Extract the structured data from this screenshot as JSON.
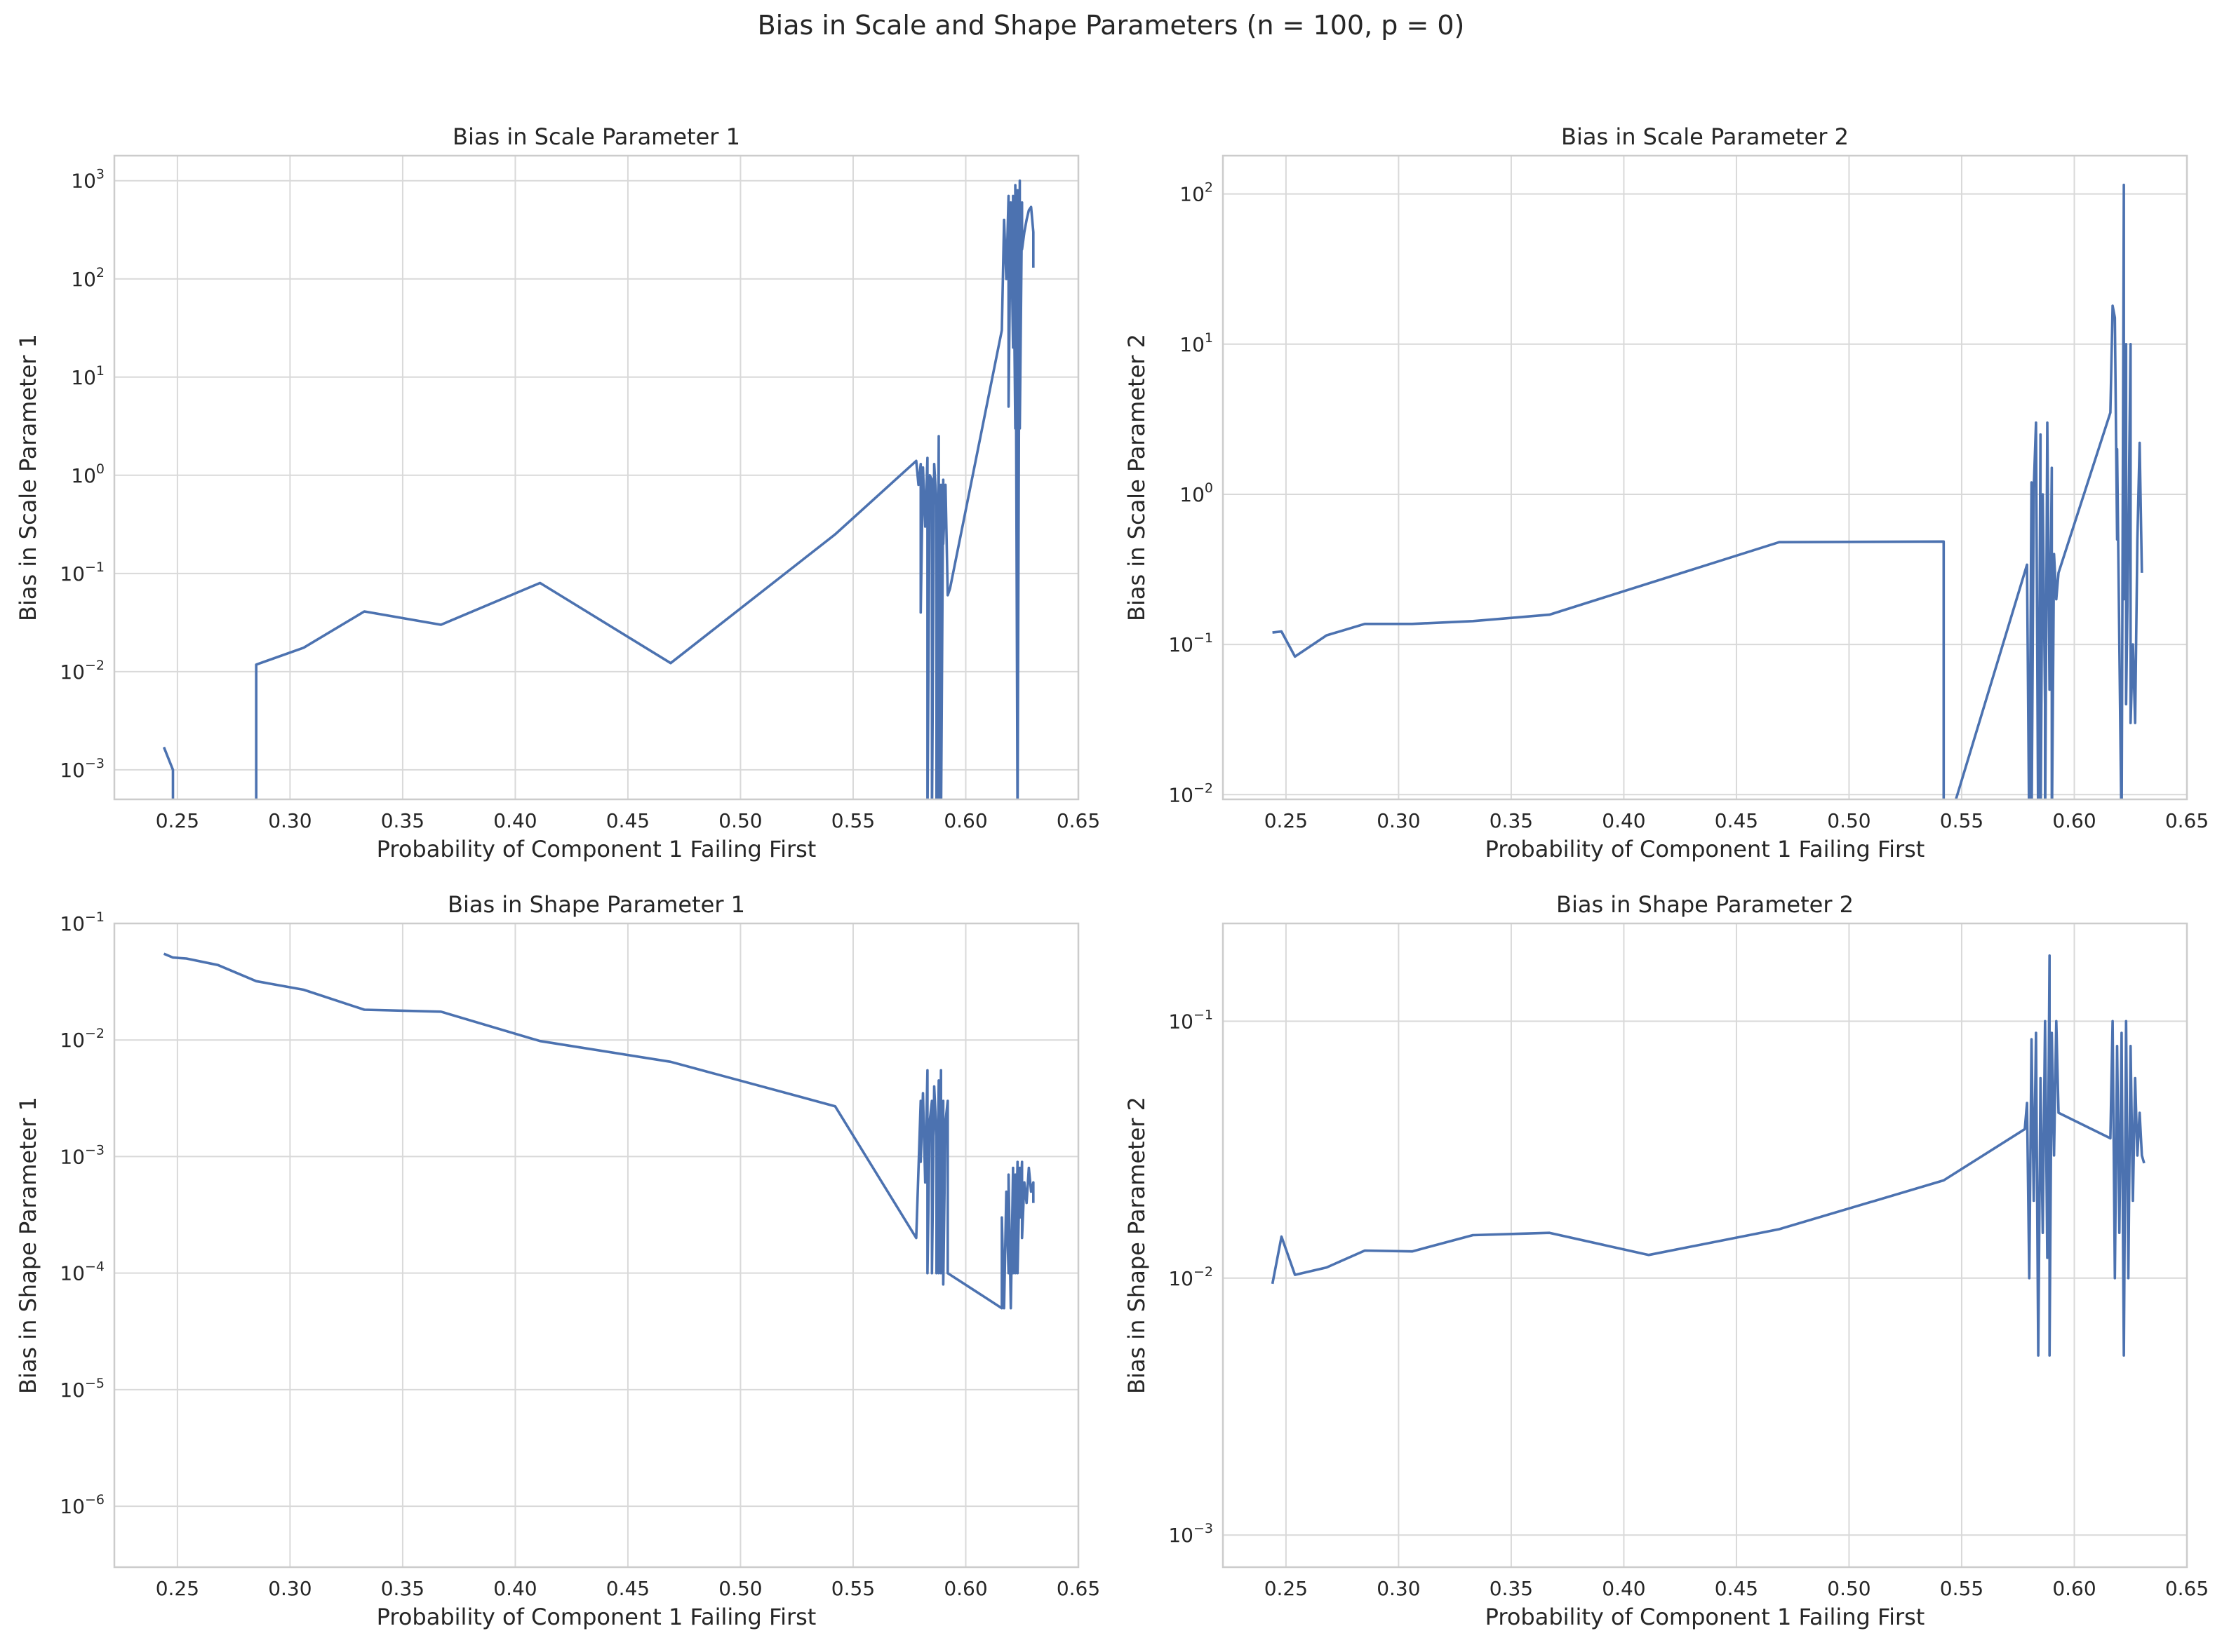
{
  "figure": {
    "suptitle": "Bias in Scale and Shape Parameters (n = 100, p = 0)",
    "background": "#ffffff",
    "grid_color": "#d9d9d9",
    "line_color": "#4c72b0"
  },
  "chart_data": [
    {
      "type": "line",
      "title": "Bias in Scale Parameter 1",
      "xlabel": "Probability of Component 1 Failing First",
      "ylabel": "Bias in Scale Parameter 1",
      "xlim": [
        0.222,
        0.65
      ],
      "xticks": [
        0.25,
        0.3,
        0.35,
        0.4,
        0.45,
        0.5,
        0.55,
        0.6,
        0.65
      ],
      "xtick_labels": [
        "0.25",
        "0.30",
        "0.35",
        "0.40",
        "0.45",
        "0.50",
        "0.55",
        "0.60",
        "0.65"
      ],
      "yscale": "log",
      "ylim": [
        0.0005,
        1800
      ],
      "yticks": [
        0.001,
        0.01,
        0.1,
        1,
        10,
        100,
        1000
      ],
      "ytick_labels": [
        {
          "base": "10",
          "exp": "−3"
        },
        {
          "base": "10",
          "exp": "−2"
        },
        {
          "base": "10",
          "exp": "−1"
        },
        {
          "base": "10",
          "exp": "0"
        },
        {
          "base": "10",
          "exp": "1"
        },
        {
          "base": "10",
          "exp": "2"
        },
        {
          "base": "10",
          "exp": "3"
        }
      ],
      "grid": true,
      "series": [
        {
          "x": [
            0.244,
            0.248,
            0.248,
            0.285,
            0.285,
            0.306,
            0.333,
            0.367,
            0.411,
            0.469,
            0.542,
            0.578,
            0.579,
            0.58,
            0.58,
            0.581,
            0.582,
            0.583,
            0.583,
            0.584,
            0.585,
            0.585,
            0.586,
            0.587,
            0.587,
            0.588,
            0.588,
            0.589,
            0.589,
            0.59,
            0.59,
            0.591,
            0.592,
            0.593,
            0.616,
            0.617,
            0.618,
            0.619,
            0.619,
            0.62,
            0.621,
            0.621,
            0.622,
            0.622,
            0.623,
            0.623,
            0.623,
            0.624,
            0.624,
            0.625,
            0.625,
            0.626,
            0.627,
            0.628,
            0.629,
            0.63,
            0.63
          ],
          "y": [
            0.0017,
            0.001,
            0.0003,
            0.0003,
            0.0118,
            0.0175,
            0.041,
            0.03,
            0.08,
            0.0122,
            0.25,
            1.4,
            0.8,
            1.3,
            0.04,
            1.2,
            0.3,
            1.5,
            0.0003,
            1.0,
            0.9,
            0.0003,
            1.3,
            0.5,
            0.0003,
            2.5,
            0.0003,
            0.8,
            0.0003,
            0.9,
            0.2,
            0.8,
            0.06,
            0.07,
            30,
            400,
            100,
            700,
            5,
            600,
            20,
            700,
            3,
            900,
            0.0003,
            800,
            0.0003,
            1000,
            3,
            600,
            200,
            300,
            400,
            500,
            540,
            300,
            130
          ]
        }
      ]
    },
    {
      "type": "line",
      "title": "Bias in Scale Parameter 2",
      "xlabel": "Probability of Component 1 Failing First",
      "ylabel": "Bias in Scale Parameter 2",
      "xlim": [
        0.222,
        0.65
      ],
      "xticks": [
        0.25,
        0.3,
        0.35,
        0.4,
        0.45,
        0.5,
        0.55,
        0.6,
        0.65
      ],
      "xtick_labels": [
        "0.25",
        "0.30",
        "0.35",
        "0.40",
        "0.45",
        "0.50",
        "0.55",
        "0.60",
        "0.65"
      ],
      "yscale": "log",
      "ylim": [
        0.0093,
        180
      ],
      "yticks": [
        0.01,
        0.1,
        1,
        10,
        100
      ],
      "ytick_labels": [
        {
          "base": "10",
          "exp": "−2"
        },
        {
          "base": "10",
          "exp": "−1"
        },
        {
          "base": "10",
          "exp": "0"
        },
        {
          "base": "10",
          "exp": "1"
        },
        {
          "base": "10",
          "exp": "2"
        }
      ],
      "grid": true,
      "series": [
        {
          "x": [
            0.244,
            0.248,
            0.254,
            0.268,
            0.285,
            0.306,
            0.333,
            0.367,
            0.469,
            0.542,
            0.542,
            0.579,
            0.58,
            0.581,
            0.581,
            0.582,
            0.583,
            0.584,
            0.585,
            0.585,
            0.586,
            0.587,
            0.587,
            0.588,
            0.589,
            0.59,
            0.59,
            0.591,
            0.592,
            0.593,
            0.616,
            0.617,
            0.618,
            0.619,
            0.619,
            0.62,
            0.621,
            0.622,
            0.622,
            0.623,
            0.623,
            0.624,
            0.625,
            0.625,
            0.626,
            0.627,
            0.628,
            0.629,
            0.63,
            0.63
          ],
          "y": [
            0.12,
            0.122,
            0.083,
            0.115,
            0.137,
            0.137,
            0.143,
            0.158,
            0.48,
            0.485,
            0.005,
            0.34,
            0.005,
            1.2,
            0.005,
            1.1,
            3.0,
            0.005,
            2.5,
            0.005,
            1.0,
            0.04,
            0.005,
            3.0,
            0.05,
            1.5,
            0.005,
            0.4,
            0.2,
            0.3,
            3.5,
            18,
            15,
            0.5,
            2.0,
            0.1,
            0.005,
            115,
            0.2,
            10,
            0.04,
            0.5,
            10,
            0.03,
            0.1,
            0.03,
            0.5,
            2.2,
            0.3,
            0.3
          ]
        }
      ]
    },
    {
      "type": "line",
      "title": "Bias in Shape Parameter 1",
      "xlabel": "Probability of Component 1 Failing First",
      "ylabel": "Bias in Shape Parameter 1",
      "xlim": [
        0.222,
        0.65
      ],
      "xticks": [
        0.25,
        0.3,
        0.35,
        0.4,
        0.45,
        0.5,
        0.55,
        0.6,
        0.65
      ],
      "xtick_labels": [
        "0.25",
        "0.30",
        "0.35",
        "0.40",
        "0.45",
        "0.50",
        "0.55",
        "0.60",
        "0.65"
      ],
      "yscale": "log",
      "ylim": [
        3e-07,
        0.1
      ],
      "yticks": [
        1e-06,
        1e-05,
        0.0001,
        0.001,
        0.01,
        0.1
      ],
      "ytick_labels": [
        {
          "base": "10",
          "exp": "−6"
        },
        {
          "base": "10",
          "exp": "−5"
        },
        {
          "base": "10",
          "exp": "−4"
        },
        {
          "base": "10",
          "exp": "−3"
        },
        {
          "base": "10",
          "exp": "−2"
        },
        {
          "base": "10",
          "exp": "−1"
        }
      ],
      "grid": true,
      "series": [
        {
          "x": [
            0.244,
            0.248,
            0.254,
            0.268,
            0.285,
            0.306,
            0.333,
            0.367,
            0.411,
            0.469,
            0.542,
            0.578,
            0.58,
            0.58,
            0.581,
            0.582,
            0.583,
            0.583,
            0.584,
            0.585,
            0.585,
            0.586,
            0.587,
            0.587,
            0.588,
            0.588,
            0.589,
            0.589,
            0.59,
            0.59,
            0.591,
            0.592,
            0.592,
            0.616,
            0.616,
            0.617,
            0.618,
            0.619,
            0.619,
            0.62,
            0.621,
            0.621,
            0.622,
            0.622,
            0.623,
            0.623,
            0.624,
            0.624,
            0.625,
            0.625,
            0.626,
            0.627,
            0.628,
            0.629,
            0.63,
            0.63
          ],
          "y": [
            0.055,
            0.051,
            0.05,
            0.044,
            0.032,
            0.027,
            0.0182,
            0.0175,
            0.0098,
            0.0065,
            0.0027,
            0.0002,
            0.003,
            0.0009,
            0.0035,
            0.0006,
            0.0055,
            0.0001,
            0.002,
            0.003,
            0.0001,
            0.004,
            0.0015,
            0.0001,
            0.0045,
            0.0001,
            0.0055,
            0.0001,
            0.003,
            8e-05,
            0.002,
            0.003,
            0.0001,
            5e-05,
            0.0003,
            5e-05,
            0.0005,
            0.0001,
            0.0007,
            5e-05,
            0.0008,
            0.0001,
            0.0007,
            0.0001,
            0.0009,
            0.0001,
            0.0008,
            0.0003,
            0.0009,
            0.0002,
            0.0006,
            0.0004,
            0.0008,
            0.0005,
            0.0006,
            0.0004
          ]
        }
      ]
    },
    {
      "type": "line",
      "title": "Bias in Shape Parameter 2",
      "xlabel": "Probability of Component 1 Failing First",
      "ylabel": "Bias in Shape Parameter 2",
      "xlim": [
        0.222,
        0.65
      ],
      "xticks": [
        0.25,
        0.3,
        0.35,
        0.4,
        0.45,
        0.5,
        0.55,
        0.6,
        0.65
      ],
      "xtick_labels": [
        "0.25",
        "0.30",
        "0.35",
        "0.40",
        "0.45",
        "0.50",
        "0.55",
        "0.60",
        "0.65"
      ],
      "yscale": "log",
      "ylim": [
        0.00075,
        0.24
      ],
      "yticks": [
        0.001,
        0.01,
        0.1
      ],
      "ytick_labels": [
        {
          "base": "10",
          "exp": "−3"
        },
        {
          "base": "10",
          "exp": "−2"
        },
        {
          "base": "10",
          "exp": "−1"
        }
      ],
      "grid": true,
      "series": [
        {
          "x": [
            0.244,
            0.248,
            0.254,
            0.268,
            0.285,
            0.306,
            0.333,
            0.367,
            0.411,
            0.469,
            0.542,
            0.578,
            0.579,
            0.58,
            0.581,
            0.582,
            0.583,
            0.584,
            0.585,
            0.586,
            0.587,
            0.588,
            0.589,
            0.589,
            0.59,
            0.591,
            0.592,
            0.593,
            0.616,
            0.617,
            0.618,
            0.619,
            0.62,
            0.621,
            0.622,
            0.623,
            0.624,
            0.625,
            0.626,
            0.627,
            0.628,
            0.629,
            0.63,
            0.631
          ],
          "y": [
            0.0095,
            0.0145,
            0.0103,
            0.011,
            0.0128,
            0.0127,
            0.0147,
            0.015,
            0.0123,
            0.0155,
            0.024,
            0.038,
            0.048,
            0.01,
            0.085,
            0.02,
            0.09,
            0.005,
            0.06,
            0.015,
            0.1,
            0.012,
            0.18,
            0.005,
            0.09,
            0.03,
            0.1,
            0.044,
            0.035,
            0.1,
            0.01,
            0.08,
            0.015,
            0.09,
            0.005,
            0.1,
            0.01,
            0.08,
            0.02,
            0.06,
            0.03,
            0.044,
            0.03,
            0.028
          ]
        }
      ]
    }
  ]
}
